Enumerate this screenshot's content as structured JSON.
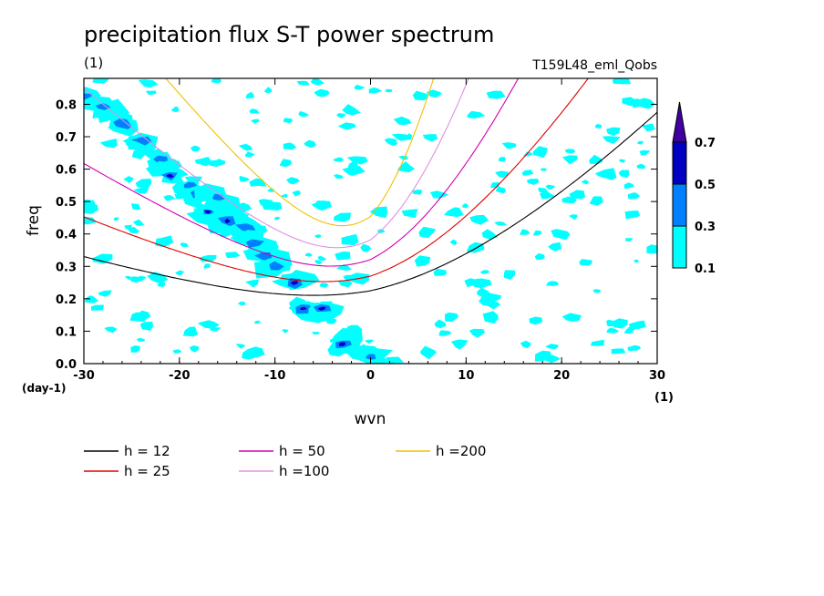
{
  "chart_data": {
    "type": "heatmap",
    "title": "precipitation flux S-T power spectrum",
    "subtitle_left": "(1)",
    "subtitle_right": "T159L48_eml_Qobs",
    "xlabel": "wvn",
    "ylabel": "freq",
    "x_unit_label": "(1)",
    "y_unit_label": "(day-1)",
    "xlim": [
      -30,
      30
    ],
    "ylim": [
      0,
      0.88
    ],
    "x_ticks": [
      -30,
      -20,
      -10,
      0,
      10,
      20,
      30
    ],
    "x_tick_labels": [
      "-30",
      "-20",
      "-10",
      "0",
      "10",
      "20",
      "30"
    ],
    "y_ticks": [
      0,
      0.1,
      0.2,
      0.3,
      0.4,
      0.5,
      0.6,
      0.7,
      0.8
    ],
    "y_tick_labels": [
      "0.0",
      "0.1",
      "0.2",
      "0.3",
      "0.4",
      "0.5",
      "0.6",
      "0.7",
      "0.8"
    ],
    "contour_levels": [
      0.1,
      0.3,
      0.5,
      0.7
    ],
    "colorbar_labels": [
      "0.1",
      "0.3",
      "0.5",
      "0.7"
    ],
    "colorbar_colors": [
      "#00ffff",
      "#0080ff",
      "#0000c0",
      "#4000a0"
    ],
    "background_color": "#ffffff",
    "kelvin_band": [
      {
        "wvn": -30,
        "freq": 0.82,
        "level": 0.3
      },
      {
        "wvn": -28,
        "freq": 0.79,
        "level": 0.3
      },
      {
        "wvn": -26,
        "freq": 0.74,
        "level": 0.3
      },
      {
        "wvn": -24,
        "freq": 0.69,
        "level": 0.3
      },
      {
        "wvn": -22,
        "freq": 0.63,
        "level": 0.3
      },
      {
        "wvn": -21,
        "freq": 0.58,
        "level": 0.5
      },
      {
        "wvn": -19,
        "freq": 0.55,
        "level": 0.3
      },
      {
        "wvn": -18,
        "freq": 0.52,
        "level": 0.3
      },
      {
        "wvn": -17,
        "freq": 0.47,
        "level": 0.5
      },
      {
        "wvn": -16,
        "freq": 0.51,
        "level": 0.3
      },
      {
        "wvn": -15,
        "freq": 0.44,
        "level": 0.5
      },
      {
        "wvn": -13,
        "freq": 0.42,
        "level": 0.3
      },
      {
        "wvn": -12,
        "freq": 0.37,
        "level": 0.3
      },
      {
        "wvn": -11,
        "freq": 0.33,
        "level": 0.3
      },
      {
        "wvn": -10,
        "freq": 0.3,
        "level": 0.3
      },
      {
        "wvn": -8,
        "freq": 0.25,
        "level": 0.5
      },
      {
        "wvn": -7,
        "freq": 0.17,
        "level": 0.7
      },
      {
        "wvn": -5,
        "freq": 0.17,
        "level": 0.5
      },
      {
        "wvn": -3,
        "freq": 0.06,
        "level": 0.5
      },
      {
        "wvn": 0,
        "freq": 0.02,
        "level": 0.3
      }
    ],
    "series": [
      {
        "name": "h = 12",
        "color": "#000000",
        "h": 12
      },
      {
        "name": "h = 25",
        "color": "#e00000",
        "h": 25
      },
      {
        "name": "h = 50",
        "color": "#d000b0",
        "h": 50
      },
      {
        "name": "h =100",
        "color": "#e090e0",
        "h": 100
      },
      {
        "name": "h =200",
        "color": "#f0c000",
        "h": 200
      }
    ]
  }
}
